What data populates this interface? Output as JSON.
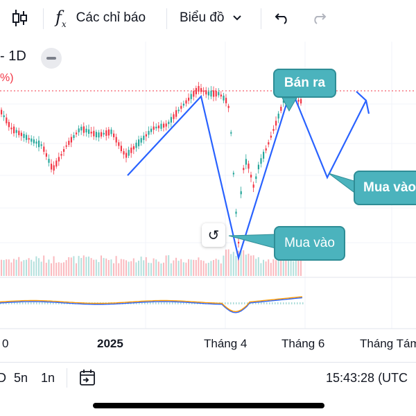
{
  "toolbar": {
    "indicators_label": "Các chỉ báo",
    "chart_type_label": "Biểu đồ"
  },
  "legend": {
    "interval": "- 1D",
    "change_pct": "%)"
  },
  "annotations": {
    "sell_label": "Bán ra",
    "buy_label_right": "Mua vào",
    "buy_label_left": "Mua vào"
  },
  "x_axis": {
    "ticks": [
      "0",
      "2025",
      "Tháng 4",
      "Tháng 6",
      "Tháng Tám"
    ]
  },
  "bottom_bar": {
    "range_d": "D",
    "range_5n": "5n",
    "range_1n": "1n",
    "clock": "15:43:28 (UTC"
  },
  "colors": {
    "up": "#26a69a",
    "down": "#f23645",
    "drawing_line": "#2962ff",
    "callout_fill": "#4bb3bd",
    "macd": "#2962ff",
    "signal": "#ff9800"
  }
}
